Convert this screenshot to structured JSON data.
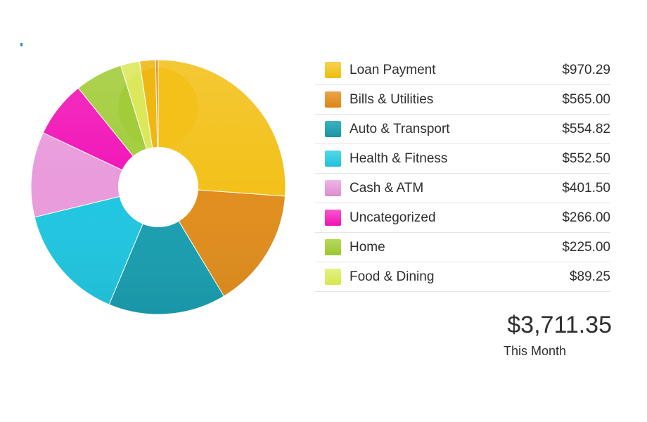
{
  "chart_data": {
    "type": "pie",
    "donut": true,
    "inner_radius_ratio": 0.31,
    "start_angle_deg": 0,
    "direction": "clockwise",
    "legend_position": "right",
    "total": 3711.35,
    "total_display": "$3,711.35",
    "total_label": "This Month",
    "slices": [
      {
        "label": "Loan Payment",
        "value": 970.29,
        "display": "$970.29",
        "color": "#F3C11A",
        "swatch_top": "#F7D252",
        "swatch_bottom": "#EFBD0B",
        "in_legend": true
      },
      {
        "label": "Bills & Utilities",
        "value": 565.0,
        "display": "$565.00",
        "color": "#E08E1E",
        "swatch_top": "#ECA54B",
        "swatch_bottom": "#DE8512",
        "in_legend": true
      },
      {
        "label": "Auto & Transport",
        "value": 554.82,
        "display": "$554.82",
        "color": "#1A9FB1",
        "swatch_top": "#3BB3C3",
        "swatch_bottom": "#1794A7",
        "in_legend": true
      },
      {
        "label": "Health & Fitness",
        "value": 552.5,
        "display": "$552.50",
        "color": "#21C6E0",
        "swatch_top": "#55D7E9",
        "swatch_bottom": "#1FC1DD",
        "in_legend": true
      },
      {
        "label": "Cash & ATM",
        "value": 401.5,
        "display": "$401.50",
        "color": "#E99BDC",
        "swatch_top": "#F0B5E6",
        "swatch_bottom": "#DE8CD0",
        "in_legend": true
      },
      {
        "label": "Uncategorized",
        "value": 266.0,
        "display": "$266.00",
        "color": "#F215B8",
        "swatch_top": "#F957CE",
        "swatch_bottom": "#EF12B4",
        "in_legend": true
      },
      {
        "label": "Home",
        "value": 225.0,
        "display": "$225.00",
        "color": "#A2CC3A",
        "swatch_top": "#B6DA5C",
        "swatch_bottom": "#9BC731",
        "in_legend": true
      },
      {
        "label": "Food & Dining",
        "value": 89.25,
        "display": "$89.25",
        "color": "#DBE85B",
        "swatch_top": "#E5F184",
        "swatch_bottom": "#D6E74C",
        "in_legend": true
      },
      {
        "label": "",
        "value": 74.99,
        "display": "",
        "color": "#EFB711",
        "in_legend": false,
        "estimated": true
      },
      {
        "label": "",
        "value": 12.0,
        "display": "",
        "color": "#DE8B1D",
        "in_legend": false,
        "estimated": true
      }
    ]
  }
}
